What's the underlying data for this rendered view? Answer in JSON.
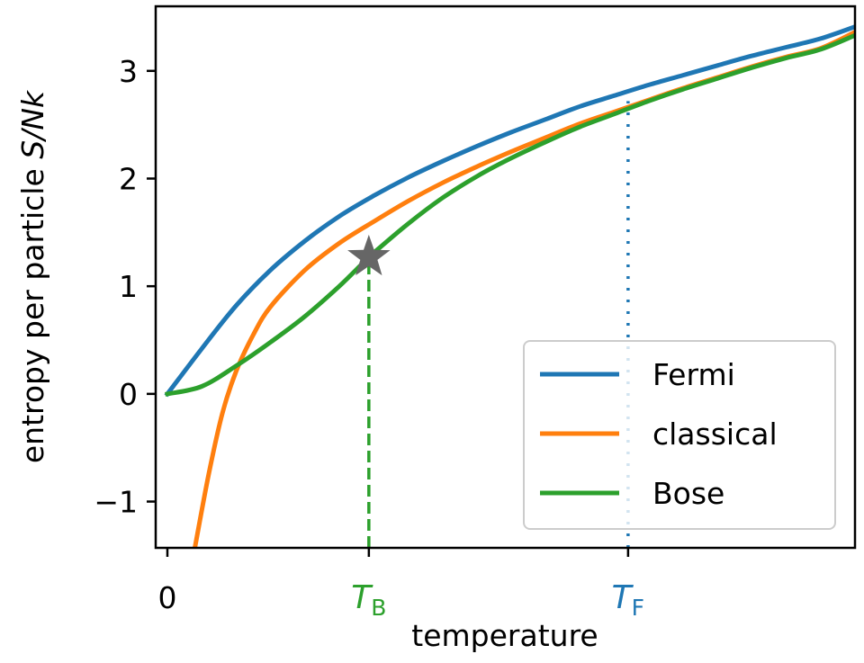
{
  "chart_data": {
    "type": "line",
    "xlabel": "temperature",
    "ylabel_main": "entropy per particle ",
    "ylabel_symbol": "S/Nk",
    "xlim": [
      -0.017,
      1.0
    ],
    "ylim": [
      -1.43,
      3.6
    ],
    "yticks": [
      -1,
      0,
      1,
      2,
      3
    ],
    "ytick_labels": [
      "−1",
      "0",
      "1",
      "2",
      "3"
    ],
    "xticks": [
      {
        "value": 0,
        "label": "0",
        "color": "#000000"
      },
      {
        "value": 0.293,
        "label": "T",
        "sub": "B",
        "color": "#2ca02c"
      },
      {
        "value": 0.67,
        "label": "T",
        "sub": "F",
        "color": "#1f77b4"
      }
    ],
    "grid": false,
    "legend_position": "lower-right",
    "series": [
      {
        "name": "Fermi",
        "color": "#1f77b4",
        "x": [
          0,
          0.05,
          0.1,
          0.15,
          0.2,
          0.25,
          0.3,
          0.35,
          0.4,
          0.45,
          0.5,
          0.55,
          0.6,
          0.65,
          0.7,
          0.75,
          0.8,
          0.85,
          0.9,
          0.95,
          1.0
        ],
        "y": [
          0,
          0.42,
          0.82,
          1.15,
          1.42,
          1.65,
          1.84,
          2.01,
          2.16,
          2.3,
          2.43,
          2.55,
          2.67,
          2.77,
          2.87,
          2.96,
          3.05,
          3.14,
          3.22,
          3.3,
          3.41
        ]
      },
      {
        "name": "classical",
        "color": "#ff7f0e",
        "x": [
          0.04,
          0.06,
          0.08,
          0.1,
          0.125,
          0.15,
          0.2,
          0.25,
          0.3,
          0.35,
          0.4,
          0.45,
          0.5,
          0.55,
          0.6,
          0.65,
          0.7,
          0.75,
          0.8,
          0.85,
          0.9,
          0.95,
          1.0
        ],
        "y": [
          -1.43,
          -0.75,
          -0.18,
          0.21,
          0.55,
          0.81,
          1.15,
          1.4,
          1.6,
          1.79,
          1.96,
          2.11,
          2.25,
          2.38,
          2.51,
          2.62,
          2.73,
          2.84,
          2.94,
          3.04,
          3.13,
          3.21,
          3.36
        ]
      },
      {
        "name": "Bose",
        "color": "#2ca02c",
        "x": [
          0,
          0.05,
          0.1,
          0.15,
          0.2,
          0.25,
          0.293,
          0.3,
          0.35,
          0.4,
          0.45,
          0.5,
          0.55,
          0.6,
          0.65,
          0.7,
          0.75,
          0.8,
          0.85,
          0.9,
          0.95,
          1.0
        ],
        "y": [
          0,
          0.07,
          0.26,
          0.48,
          0.72,
          1.0,
          1.27,
          1.31,
          1.58,
          1.82,
          2.02,
          2.19,
          2.34,
          2.48,
          2.6,
          2.72,
          2.83,
          2.93,
          3.03,
          3.12,
          3.2,
          3.33
        ]
      }
    ],
    "annotations": [
      {
        "type": "vline",
        "x": 0.293,
        "y_from": -1.43,
        "y_to": 1.27,
        "style": "dashed",
        "color": "#2ca02c"
      },
      {
        "type": "vline",
        "x": 0.67,
        "y_from": -1.43,
        "y_to": 2.72,
        "style": "dotted",
        "color": "#1f77b4"
      },
      {
        "type": "marker",
        "shape": "star",
        "x": 0.293,
        "y": 1.27,
        "color": "#666666"
      }
    ]
  }
}
